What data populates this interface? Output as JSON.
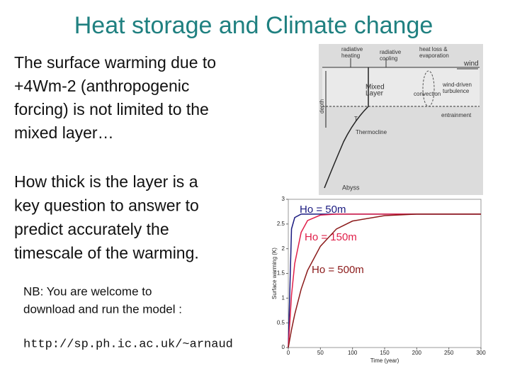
{
  "slide": {
    "title": "Heat storage and Climate change",
    "paragraph1": [
      "The surface warming due to",
      "+4Wm-2 (anthropogenic",
      "forcing) is not limited to the",
      "mixed layer…"
    ],
    "paragraph2": [
      "How thick is the layer is a",
      "key question to answer to",
      "predict accurately the",
      "timescale of the warming."
    ],
    "note": [
      "NB: You are welcome to",
      "download and run the model :"
    ],
    "url": "http://sp.ph.ic.ac.uk/~arnaud"
  },
  "diagram": {
    "radiative_heating": [
      "radiative",
      "heating"
    ],
    "radiative_cooling": [
      "radiative",
      "cooling"
    ],
    "heat_loss": [
      "heat loss &",
      "evaporation"
    ],
    "wind": "wind",
    "mixed_layer": [
      "Mixed",
      "Layer"
    ],
    "turbulence": [
      "wind-driven",
      "turbulence"
    ],
    "convection": "convection",
    "entrainment": "entrainment",
    "depth": "depth",
    "temperature": "T",
    "thermocline": "Thermocline",
    "abyss": "Abyss"
  },
  "plot": {
    "type": "line",
    "xlabel": "Time (year)",
    "ylabel": "Surface warming (K)",
    "x": [
      0,
      5,
      10,
      20,
      30,
      50,
      75,
      100,
      150,
      200,
      250,
      300
    ],
    "series": [
      {
        "name": "Ho = 50m",
        "color": "#1a1a80",
        "values": [
          0,
          2.4,
          2.63,
          2.7,
          2.7,
          2.7,
          2.7,
          2.7,
          2.7,
          2.7,
          2.7,
          2.7
        ]
      },
      {
        "name": "Ho = 150m",
        "color": "#e0204a",
        "values": [
          0,
          1.06,
          1.7,
          2.33,
          2.57,
          2.68,
          2.7,
          2.7,
          2.7,
          2.7,
          2.7,
          2.7
        ]
      },
      {
        "name": "Ho = 500m",
        "color": "#8b1a1a",
        "values": [
          0,
          0.36,
          0.67,
          1.18,
          1.56,
          2.05,
          2.4,
          2.56,
          2.67,
          2.7,
          2.7,
          2.7
        ]
      }
    ],
    "xlim": [
      0,
      300
    ],
    "xticks": [
      0,
      50,
      100,
      150,
      200,
      250,
      300
    ],
    "ylim": [
      0,
      3
    ],
    "yticks": [
      0,
      0.5,
      1,
      1.5,
      2,
      2.5,
      3
    ]
  }
}
